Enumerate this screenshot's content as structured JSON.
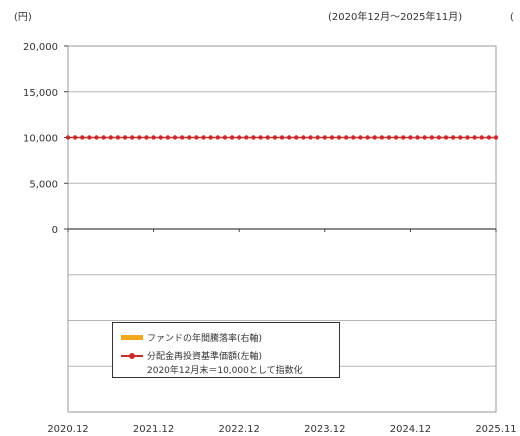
{
  "header": {
    "unit_label": "(円)",
    "period_label": "(2020年12月～2025年11月)",
    "right_edge_glyph": "("
  },
  "chart_data": {
    "type": "line",
    "y_axis": {
      "range": [
        -20000,
        20000
      ],
      "tick_labels": [
        "20,000",
        "15,000",
        "10,000",
        "5,000",
        "0"
      ],
      "tick_values": [
        20000,
        15000,
        10000,
        5000,
        0
      ],
      "gridlines": true
    },
    "x_axis": {
      "tick_labels": [
        "2020.12",
        "2021.12",
        "2022.12",
        "2023.12",
        "2024.12",
        "2025.11"
      ]
    },
    "series": [
      {
        "name": "分配金再投資基準価額(左軸)",
        "type": "line",
        "color": "#cc2a2a",
        "values": [
          10000,
          10000,
          10000,
          10000,
          10000,
          10000
        ]
      },
      {
        "name": "ファンドの年間騰落率(右軸)",
        "type": "bar",
        "color": "#f2a81d",
        "values": []
      }
    ],
    "legend": {
      "placement": "bottom-left",
      "note": "2020年12月末＝10,000として指数化"
    }
  }
}
